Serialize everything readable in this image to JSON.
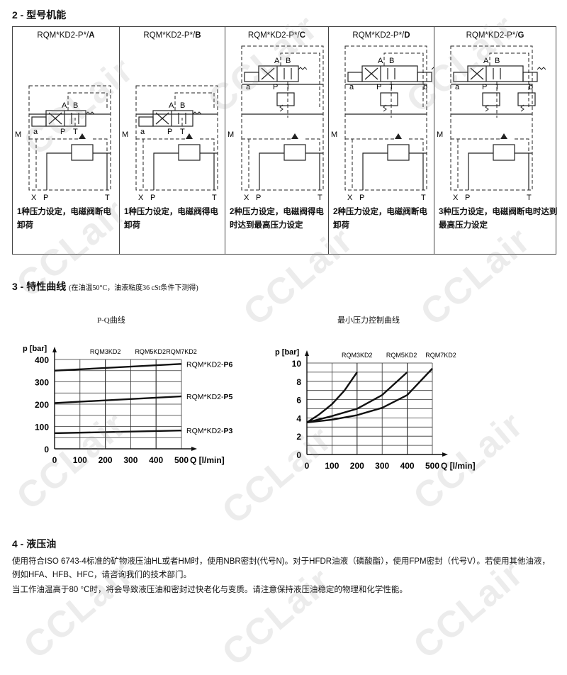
{
  "section2": {
    "title": "2 - 型号机能",
    "cells": [
      {
        "prefix": "RQM*KD2-P*/",
        "code": "A",
        "desc": "1种压力设定，电磁阀断电卸荷",
        "variant": "A"
      },
      {
        "prefix": "RQM*KD2-P*/",
        "code": "B",
        "desc": "1种压力设定，电磁阀得电卸荷",
        "variant": "B"
      },
      {
        "prefix": "RQM*KD2-P*/",
        "code": "C",
        "desc": "2种压力设定，电磁阀得电时达到最高压力设定",
        "variant": "C"
      },
      {
        "prefix": "RQM*KD2-P*/",
        "code": "D",
        "desc": "2种压力设定，电磁阀断电卸荷",
        "variant": "D"
      },
      {
        "prefix": "RQM*KD2-P*/",
        "code": "G",
        "desc": "3种压力设定，电磁阀断电时达到最高压力设定",
        "variant": "G"
      }
    ],
    "port_labels": {
      "A": "A",
      "B": "B",
      "P": "P",
      "T": "T",
      "a": "a",
      "b": "b",
      "X": "X",
      "M": "M"
    }
  },
  "section3": {
    "title": "3 - 特性曲线",
    "note": "(在油温50°C，油液粘度36 cSt条件下测得)"
  },
  "chart_data": [
    {
      "type": "line",
      "title": "P-Q曲线",
      "xlabel": "Q [l/min]",
      "ylabel": "p [bar]",
      "xlim": [
        0,
        500
      ],
      "ylim": [
        0,
        400
      ],
      "xticks": [
        "0",
        "100",
        "200",
        "300",
        "400",
        "500"
      ],
      "yticks": [
        "0",
        "100",
        "200",
        "300",
        "400"
      ],
      "grid": true,
      "top_labels": [
        {
          "text": "RQM3KD2",
          "at": 200
        },
        {
          "text": "RQM5KD2",
          "at": 400
        },
        {
          "text": "RQM7KD2",
          "at": 500
        }
      ],
      "series": [
        {
          "name": "RQM*KD2-",
          "bold": "P6",
          "x": [
            0,
            500
          ],
          "y": [
            350,
            380
          ]
        },
        {
          "name": "RQM*KD2-",
          "bold": "P5",
          "x": [
            0,
            500
          ],
          "y": [
            205,
            235
          ]
        },
        {
          "name": "RQM*KD2-",
          "bold": "P3",
          "x": [
            0,
            500
          ],
          "y": [
            70,
            82
          ]
        }
      ]
    },
    {
      "type": "line",
      "title": "最小压力控制曲线",
      "xlabel": "Q [l/min]",
      "ylabel": "p [bar]",
      "xlim": [
        0,
        500
      ],
      "ylim": [
        0,
        10
      ],
      "xticks": [
        "0",
        "100",
        "200",
        "300",
        "400",
        "500"
      ],
      "yticks": [
        "0",
        "2",
        "4",
        "6",
        "8",
        "10"
      ],
      "grid": true,
      "top_labels": [
        {
          "text": "RQM3KD2",
          "at": 200
        },
        {
          "text": "RQM5KD2",
          "at": 400
        },
        {
          "text": "RQM7KD2",
          "at": 500
        }
      ],
      "series": [
        {
          "name": "RQM3KD2",
          "x": [
            0,
            50,
            100,
            150,
            200
          ],
          "y": [
            3.5,
            4.4,
            5.5,
            7.0,
            9.0
          ]
        },
        {
          "name": "RQM5KD2",
          "x": [
            0,
            100,
            200,
            300,
            400
          ],
          "y": [
            3.5,
            4.2,
            5.0,
            6.5,
            9.0
          ]
        },
        {
          "name": "RQM7KD2",
          "x": [
            0,
            100,
            200,
            300,
            400,
            500
          ],
          "y": [
            3.5,
            3.8,
            4.3,
            5.1,
            6.5,
            9.4
          ]
        }
      ]
    }
  ],
  "section4": {
    "title": "4 - 液压油",
    "p1": "使用符合ISO 6743-4标准的矿物液压油HL或者HM时，使用NBR密封(代号N)。对于HFDR油液（磷酸酯），使用FPM密封（代号V）。若使用其他油液，例如HFA、HFB、HFC，请咨询我们的技术部门。",
    "p2": "当工作油温高于80 °C时，将会导致液压油和密封过快老化与变质。请注意保持液压油稳定的物理和化学性能。"
  },
  "watermark": "CCLair"
}
